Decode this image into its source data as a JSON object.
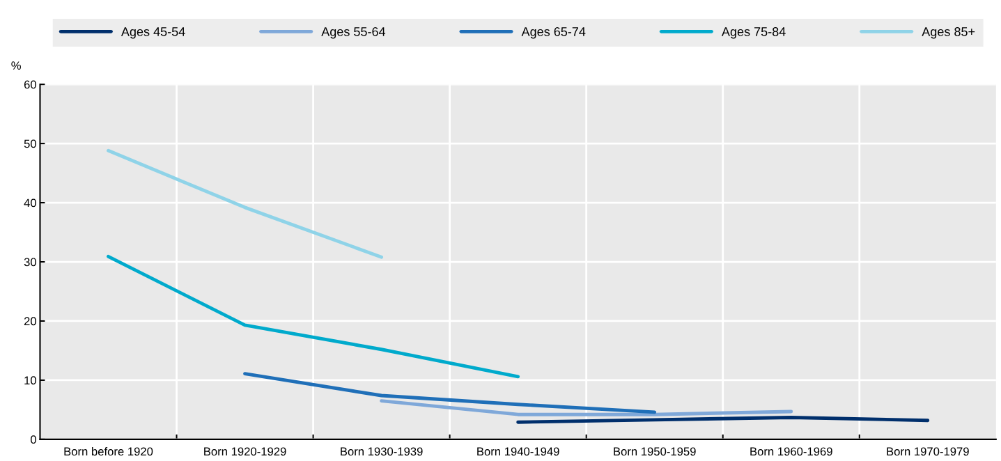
{
  "chart_data": {
    "type": "line",
    "ylabel": "%",
    "categories": [
      "Born before 1920",
      "Born 1920-1929",
      "Born 1930-1939",
      "Born 1940-1949",
      "Born 1950-1959",
      "Born 1960-1969",
      "Born 1970-1979"
    ],
    "series": [
      {
        "name": "Ages 45-54",
        "color": "#002f6c",
        "values": [
          null,
          null,
          null,
          2.9,
          3.3,
          3.7,
          3.2
        ]
      },
      {
        "name": "Ages 55-64",
        "color": "#7fa8d9",
        "values": [
          null,
          null,
          6.5,
          4.2,
          4.2,
          4.7,
          null
        ]
      },
      {
        "name": "Ages 65-74",
        "color": "#1f6fb8",
        "values": [
          null,
          11.1,
          7.4,
          5.9,
          4.6,
          null,
          null
        ]
      },
      {
        "name": "Ages 75-84",
        "color": "#00aacc",
        "values": [
          30.9,
          19.3,
          15.2,
          10.6,
          null,
          null,
          null
        ]
      },
      {
        "name": "Ages 85+",
        "color": "#8fd3e8",
        "values": [
          48.8,
          39.2,
          30.8,
          null,
          null,
          null,
          null
        ]
      }
    ],
    "ylim": [
      0,
      60
    ],
    "yticks": [
      0,
      10,
      20,
      30,
      40,
      50,
      60
    ],
    "grid": true,
    "legend": "top",
    "marker": "none",
    "line_style": "solid"
  }
}
